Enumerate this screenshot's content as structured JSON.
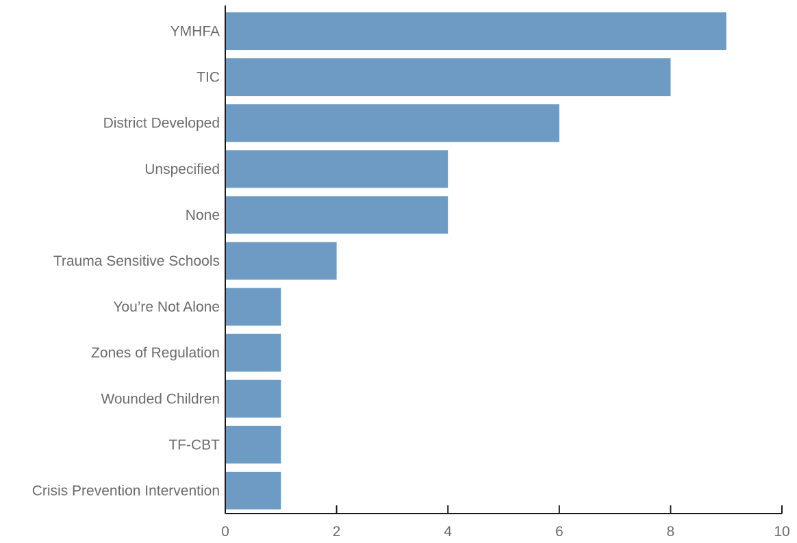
{
  "chart_data": {
    "type": "bar",
    "orientation": "horizontal",
    "title": "",
    "xlabel": "",
    "ylabel": "",
    "categories": [
      "YMHFA",
      "TIC",
      "District Developed",
      "Unspecified",
      "None",
      "Trauma Sensitive Schools",
      "You’re Not Alone",
      "Zones of Regulation",
      "Wounded Children",
      "TF-CBT",
      "Crisis Prevention Intervention"
    ],
    "values": [
      9,
      8,
      6,
      4,
      4,
      2,
      1,
      1,
      1,
      1,
      1
    ],
    "xlim": [
      0,
      10
    ],
    "x_ticks": [
      0,
      2,
      4,
      6,
      8,
      10
    ],
    "grid": false,
    "legend": "none",
    "bar_color": "#6d9bc3"
  }
}
